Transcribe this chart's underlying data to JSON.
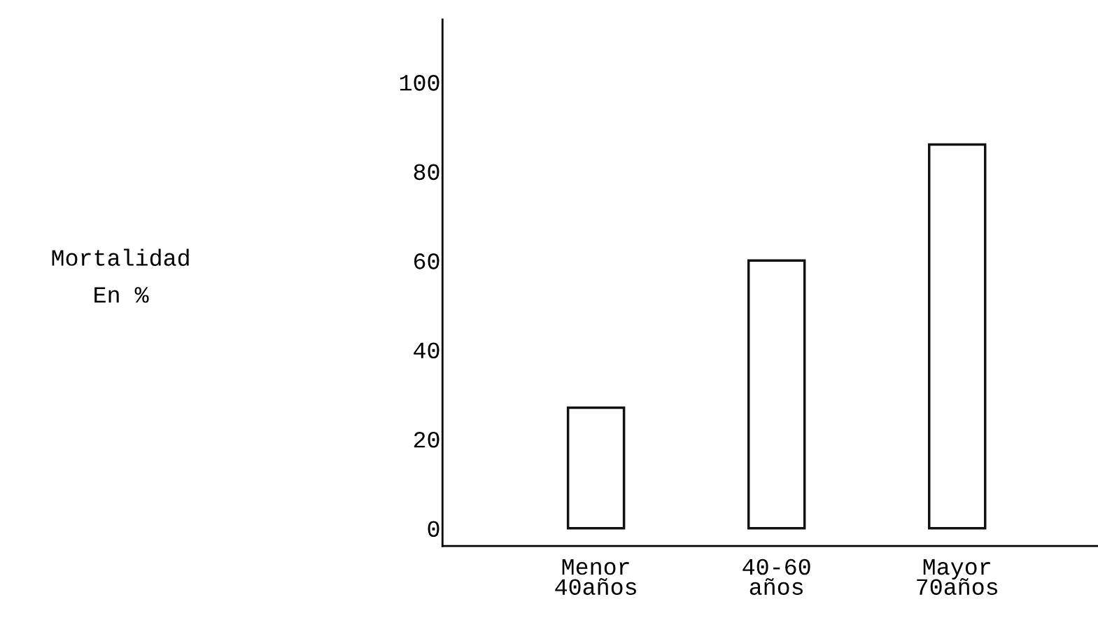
{
  "chart_data": {
    "type": "bar",
    "annotations": [
      "Mortalidad\nEn %"
    ],
    "categories": [
      "Menor\n40años",
      "40-60\naños",
      "Mayor\n70años"
    ],
    "values": [
      27,
      60,
      86
    ],
    "color": "#ffffff",
    "ylim": [
      -4,
      114
    ],
    "yticks": [
      0,
      20,
      40,
      60,
      80,
      100
    ],
    "grid": false,
    "legend": false
  }
}
